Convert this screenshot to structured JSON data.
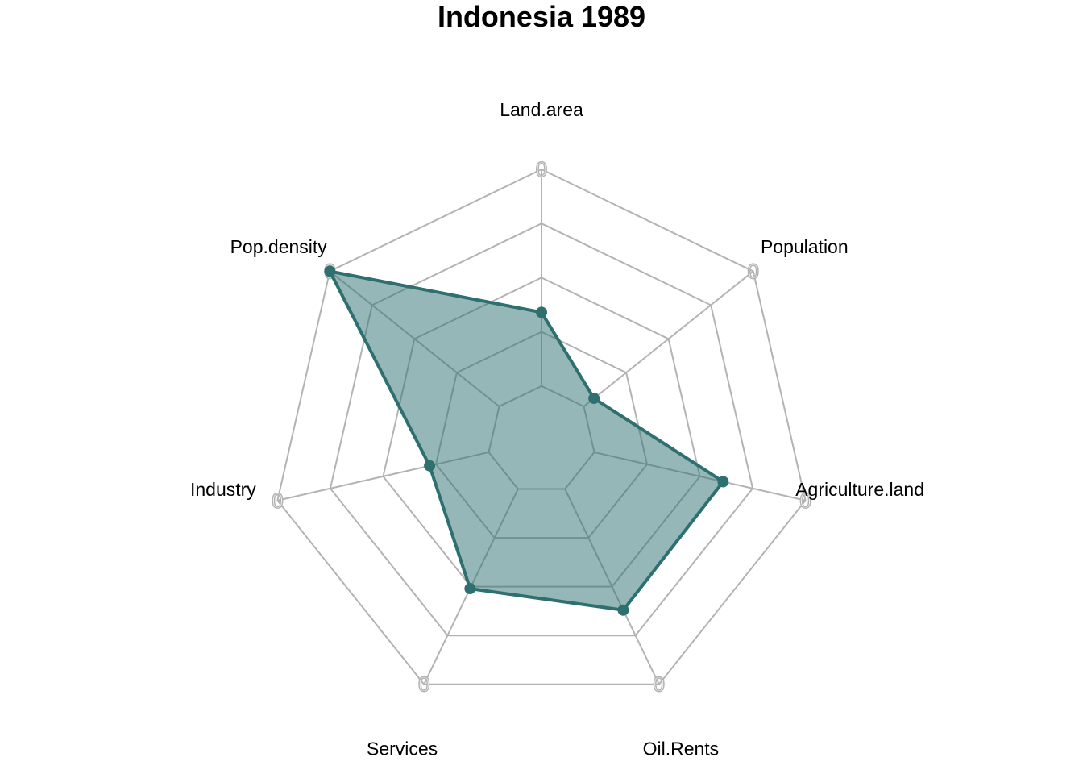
{
  "chart_data": {
    "type": "radar",
    "title": "Indonesia 1989",
    "axes": [
      "Land.area",
      "Population",
      "Agriculture.land",
      "Oil.Rents",
      "Services",
      "Industry",
      "Pop.density"
    ],
    "range": [
      0,
      1
    ],
    "grid_levels": 5,
    "tick_label": "0",
    "series": [
      {
        "values": [
          0.34,
          0.06,
          0.61,
          0.62,
          0.51,
          0.28,
          1.0
        ],
        "color": "#2e7070",
        "fill": "#2e7070",
        "fill_opacity": 0.5
      }
    ],
    "grid_color": "#b3b3b3"
  }
}
